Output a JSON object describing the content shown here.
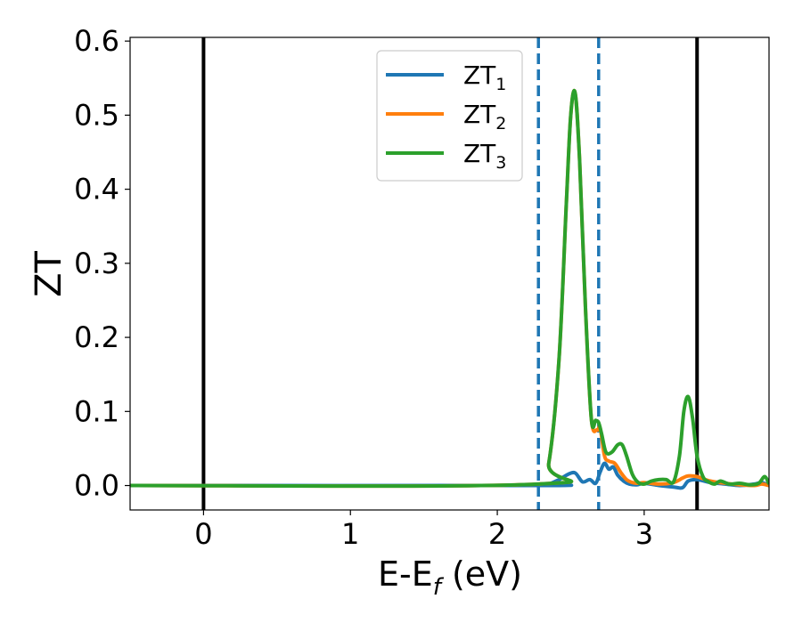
{
  "chart_data": {
    "type": "line",
    "title": "",
    "xlabel": "E-E",
    "xlabel_sub": "f",
    "xlabel_unit": " (eV)",
    "ylabel": "ZT",
    "xlim": [
      -0.5,
      3.85
    ],
    "ylim": [
      -0.033,
      0.605
    ],
    "x_ticks": [
      0,
      1,
      2,
      3
    ],
    "y_ticks": [
      0.0,
      0.1,
      0.2,
      0.3,
      0.4,
      0.5,
      0.6
    ],
    "x_tick_labels": [
      "0",
      "1",
      "2",
      "3"
    ],
    "y_tick_labels": [
      "0.0",
      "0.1",
      "0.2",
      "0.3",
      "0.4",
      "0.5",
      "0.6"
    ],
    "grid": false,
    "legend_position": "top-center",
    "vlines": [
      {
        "x": 0.0,
        "style": "solid",
        "color": "#000000"
      },
      {
        "x": 3.36,
        "style": "solid",
        "color": "#000000"
      },
      {
        "x": 2.28,
        "style": "dashed",
        "color": "#1f77b4"
      },
      {
        "x": 2.69,
        "style": "dashed",
        "color": "#1f77b4"
      }
    ],
    "series": [
      {
        "name": "ZT",
        "sub": "1",
        "color": "#1f77b4",
        "x": [
          -0.5,
          2.28,
          2.35,
          2.42,
          2.48,
          2.53,
          2.58,
          2.63,
          2.67,
          2.7,
          2.73,
          2.76,
          2.79,
          2.82,
          2.86,
          2.9,
          2.95,
          3.0,
          3.1,
          3.2,
          3.26,
          3.3,
          3.36,
          3.45,
          3.55,
          3.65,
          3.75,
          3.8,
          3.85
        ],
        "y": [
          0.0,
          0.0,
          0.002,
          0.008,
          0.015,
          0.017,
          0.005,
          0.008,
          0.003,
          0.018,
          0.03,
          0.022,
          0.025,
          0.014,
          0.006,
          0.002,
          0.001,
          0.003,
          0.0,
          -0.002,
          -0.003,
          0.006,
          0.008,
          0.004,
          0.002,
          0.0,
          0.002,
          0.004,
          0.0
        ]
      },
      {
        "name": "ZT",
        "sub": "2",
        "color": "#ff7f0e",
        "x": [
          -0.5,
          2.28,
          2.35,
          2.42,
          2.47,
          2.5,
          2.53,
          2.56,
          2.6,
          2.64,
          2.68,
          2.7,
          2.73,
          2.76,
          2.8,
          2.84,
          2.88,
          2.92,
          2.96,
          3.0,
          3.1,
          3.2,
          3.26,
          3.3,
          3.36,
          3.45,
          3.55,
          3.65,
          3.75,
          3.8,
          3.85
        ],
        "y": [
          0.0,
          0.002,
          0.03,
          0.17,
          0.38,
          0.5,
          0.53,
          0.44,
          0.24,
          0.09,
          0.075,
          0.078,
          0.04,
          0.033,
          0.03,
          0.018,
          0.008,
          0.004,
          0.003,
          0.004,
          0.002,
          0.004,
          0.01,
          0.013,
          0.012,
          0.006,
          0.003,
          0.001,
          0.0,
          0.002,
          0.0
        ]
      },
      {
        "name": "ZT",
        "sub": "3",
        "color": "#2ca02c",
        "x": [
          -0.5,
          2.28,
          2.35,
          2.42,
          2.47,
          2.5,
          2.53,
          2.56,
          2.6,
          2.64,
          2.67,
          2.69,
          2.71,
          2.74,
          2.78,
          2.82,
          2.85,
          2.88,
          2.92,
          2.96,
          3.0,
          3.05,
          3.1,
          3.15,
          3.2,
          3.24,
          3.27,
          3.3,
          3.33,
          3.36,
          3.4,
          3.44,
          3.48,
          3.52,
          3.58,
          3.65,
          3.72,
          3.78,
          3.82,
          3.85
        ],
        "y": [
          0.0,
          0.002,
          0.03,
          0.17,
          0.38,
          0.5,
          0.53,
          0.44,
          0.24,
          0.09,
          0.088,
          0.085,
          0.07,
          0.045,
          0.045,
          0.055,
          0.055,
          0.04,
          0.015,
          0.004,
          0.002,
          0.006,
          0.008,
          0.008,
          0.005,
          0.04,
          0.1,
          0.12,
          0.09,
          0.04,
          0.012,
          0.005,
          0.002,
          0.006,
          0.002,
          0.003,
          0.001,
          0.003,
          0.012,
          0.002
        ]
      }
    ]
  }
}
